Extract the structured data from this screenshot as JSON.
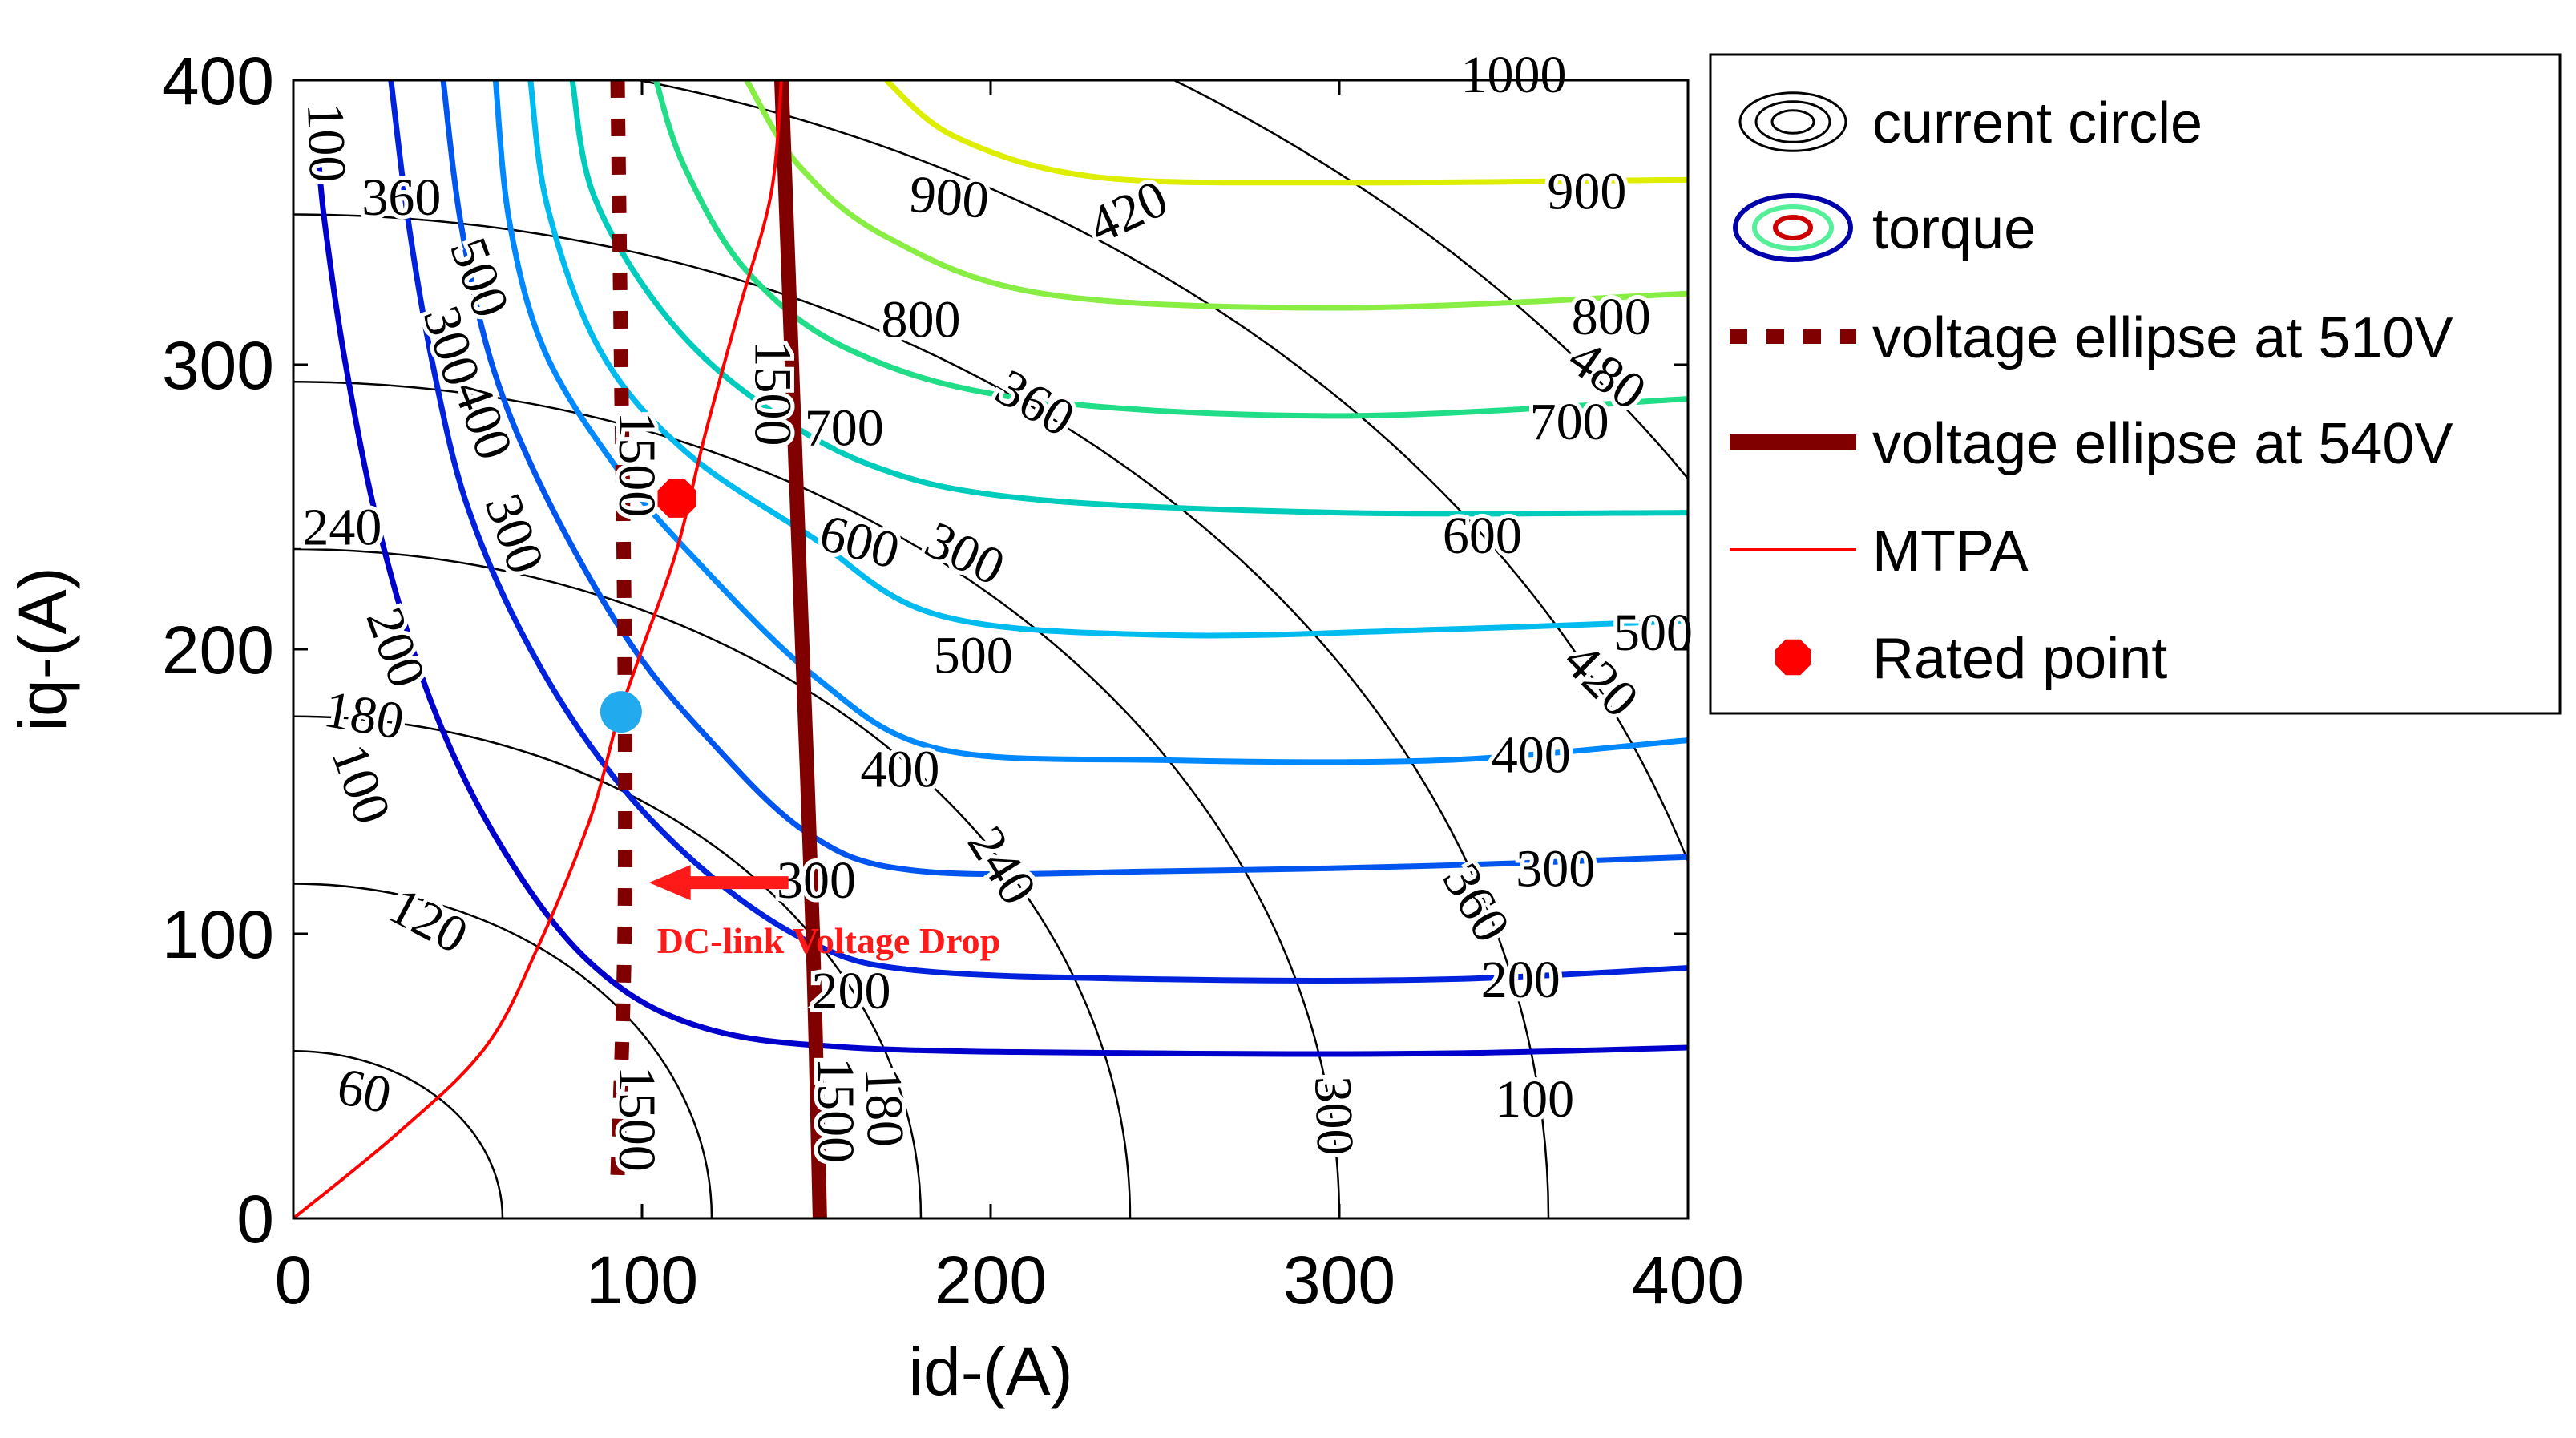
{
  "chart_data": {
    "type": "contour",
    "xlabel": "id-(A)",
    "ylabel": "iq-(A)",
    "xlim": [
      0,
      400
    ],
    "ylim": [
      0,
      400
    ],
    "xticks": [
      "0",
      "100",
      "200",
      "300",
      "400"
    ],
    "yticks": [
      "0",
      "100",
      "200",
      "300",
      "400"
    ],
    "legend_position": "outside-right",
    "legend": [
      {
        "key": "current_circle",
        "label": "current circle",
        "style": "black-concentric-ellipses",
        "color": "#000000"
      },
      {
        "key": "torque",
        "label": "torque",
        "style": "colored-concentric-ellipses",
        "color": "#0000aa"
      },
      {
        "key": "v510",
        "label": "voltage ellipse at 510V",
        "style": "dashed",
        "color": "#800000"
      },
      {
        "key": "v540",
        "label": "voltage ellipse at 540V",
        "style": "solid-thick",
        "color": "#800000"
      },
      {
        "key": "mtpa",
        "label": "MTPA",
        "style": "line",
        "color": "#ff0000"
      },
      {
        "key": "rated",
        "label": "Rated point",
        "style": "marker",
        "color": "#ff0000"
      }
    ],
    "current_circles": {
      "radii": [
        60,
        120,
        180,
        240,
        300,
        360,
        420,
        480,
        1000
      ],
      "labels": [
        {
          "text": "60",
          "x": 20,
          "y": 43,
          "angle": 12
        },
        {
          "text": "120",
          "x": 38,
          "y": 103,
          "angle": 28
        },
        {
          "text": "180",
          "x": 20,
          "y": 175,
          "angle": 10
        },
        {
          "text": "240",
          "x": 14,
          "y": 241,
          "angle": 0
        },
        {
          "text": "300",
          "x": 62,
          "y": 240,
          "angle": 70
        },
        {
          "text": "360",
          "x": 31,
          "y": 357,
          "angle": 0
        },
        {
          "text": "420",
          "x": 240,
          "y": 352,
          "angle": -25
        },
        {
          "text": "360",
          "x": 212,
          "y": 285,
          "angle": 30
        },
        {
          "text": "300",
          "x": 192,
          "y": 232,
          "angle": 25
        },
        {
          "text": "240",
          "x": 202,
          "y": 123,
          "angle": 58
        },
        {
          "text": "180",
          "x": 168,
          "y": 39,
          "angle": 88
        },
        {
          "text": "300",
          "x": 297,
          "y": 36,
          "angle": 88
        },
        {
          "text": "360",
          "x": 338,
          "y": 110,
          "angle": 60
        },
        {
          "text": "420",
          "x": 374,
          "y": 188,
          "angle": 45
        },
        {
          "text": "480",
          "x": 376,
          "y": 295,
          "angle": 35
        },
        {
          "text": "1000",
          "x": 350,
          "y": 400,
          "angle": 0
        }
      ]
    },
    "torque_contours": [
      {
        "value": 100,
        "color": "#0000cc",
        "points": [
          [
            7,
            376
          ],
          [
            9,
            350
          ],
          [
            15,
            300
          ],
          [
            25,
            240
          ],
          [
            40,
            180
          ],
          [
            60,
            130
          ],
          [
            85,
            90
          ],
          [
            115,
            68
          ],
          [
            160,
            60
          ],
          [
            250,
            58
          ],
          [
            330,
            58
          ],
          [
            400,
            60
          ]
        ],
        "labels": [
          {
            "text": "100",
            "x": 8,
            "y": 378,
            "angle": 88
          },
          {
            "text": "100",
            "x": 18,
            "y": 152,
            "angle": 70
          },
          {
            "text": "100",
            "x": 356,
            "y": 40,
            "angle": 0
          }
        ]
      },
      {
        "value": 200,
        "color": "#0022dd",
        "points": [
          [
            28,
            400
          ],
          [
            33,
            350
          ],
          [
            40,
            300
          ],
          [
            50,
            250
          ],
          [
            68,
            200
          ],
          [
            92,
            155
          ],
          [
            120,
            120
          ],
          [
            150,
            96
          ],
          [
            180,
            87
          ],
          [
            250,
            84
          ],
          [
            330,
            84
          ],
          [
            400,
            88
          ]
        ],
        "labels": [
          {
            "text": "200",
            "x": 28,
            "y": 200,
            "angle": 70
          },
          {
            "text": "200",
            "x": 160,
            "y": 78,
            "angle": 0
          },
          {
            "text": "200",
            "x": 352,
            "y": 82,
            "angle": 0
          }
        ]
      },
      {
        "value": 300,
        "color": "#0055ee",
        "points": [
          [
            43,
            400
          ],
          [
            48,
            350
          ],
          [
            57,
            300
          ],
          [
            72,
            255
          ],
          [
            95,
            205
          ],
          [
            118,
            170
          ],
          [
            148,
            135
          ],
          [
            180,
            122
          ],
          [
            250,
            122
          ],
          [
            330,
            124
          ],
          [
            400,
            127
          ]
        ],
        "labels": [
          {
            "text": "300",
            "x": 44,
            "y": 306,
            "angle": 72
          },
          {
            "text": "300",
            "x": 150,
            "y": 117,
            "angle": 0
          },
          {
            "text": "300",
            "x": 362,
            "y": 121,
            "angle": 0
          }
        ]
      },
      {
        "value": 400,
        "color": "#0088ff",
        "points": [
          [
            58,
            400
          ],
          [
            62,
            350
          ],
          [
            72,
            305
          ],
          [
            92,
            265
          ],
          [
            115,
            232
          ],
          [
            150,
            190
          ],
          [
            185,
            165
          ],
          [
            250,
            161
          ],
          [
            330,
            161
          ],
          [
            400,
            168
          ]
        ],
        "labels": [
          {
            "text": "400",
            "x": 53,
            "y": 280,
            "angle": 70
          },
          {
            "text": "400",
            "x": 174,
            "y": 156,
            "angle": 0
          },
          {
            "text": "400",
            "x": 355,
            "y": 161,
            "angle": 0
          }
        ]
      },
      {
        "value": 500,
        "color": "#00bbee",
        "points": [
          [
            68,
            400
          ],
          [
            73,
            355
          ],
          [
            88,
            305
          ],
          [
            112,
            270
          ],
          [
            148,
            240
          ],
          [
            185,
            212
          ],
          [
            250,
            205
          ],
          [
            330,
            207
          ],
          [
            400,
            210
          ]
        ],
        "labels": [
          {
            "text": "500",
            "x": 52,
            "y": 330,
            "angle": 70
          },
          {
            "text": "500",
            "x": 195,
            "y": 196,
            "angle": 0
          },
          {
            "text": "500",
            "x": 390,
            "y": 204,
            "angle": 0
          }
        ]
      },
      {
        "value": 600,
        "color": "#00ccbb",
        "points": [
          [
            80,
            400
          ],
          [
            86,
            360
          ],
          [
            105,
            320
          ],
          [
            130,
            290
          ],
          [
            165,
            265
          ],
          [
            210,
            253
          ],
          [
            300,
            248
          ],
          [
            400,
            248
          ]
        ],
        "labels": [
          {
            "text": "600",
            "x": 162,
            "y": 236,
            "angle": 15
          },
          {
            "text": "600",
            "x": 341,
            "y": 238,
            "angle": 0
          }
        ]
      },
      {
        "value": 700,
        "color": "#22dd88",
        "points": [
          [
            104,
            400
          ],
          [
            112,
            370
          ],
          [
            130,
            333
          ],
          [
            160,
            305
          ],
          [
            210,
            288
          ],
          [
            300,
            282
          ],
          [
            400,
            288
          ]
        ],
        "labels": [
          {
            "text": "700",
            "x": 158,
            "y": 276,
            "angle": 0
          },
          {
            "text": "700",
            "x": 366,
            "y": 278,
            "angle": 0
          }
        ]
      },
      {
        "value": 800,
        "color": "#88ee44",
        "points": [
          [
            130,
            400
          ],
          [
            145,
            370
          ],
          [
            170,
            345
          ],
          [
            215,
            325
          ],
          [
            300,
            320
          ],
          [
            400,
            325
          ]
        ],
        "labels": [
          {
            "text": "800",
            "x": 180,
            "y": 314,
            "angle": 0
          },
          {
            "text": "800",
            "x": 378,
            "y": 315,
            "angle": 0
          }
        ]
      },
      {
        "value": 900,
        "color": "#ddee00",
        "points": [
          [
            170,
            400
          ],
          [
            190,
            380
          ],
          [
            230,
            366
          ],
          [
            300,
            364
          ],
          [
            400,
            365
          ]
        ],
        "labels": [
          {
            "text": "900",
            "x": 188,
            "y": 357,
            "angle": 5
          },
          {
            "text": "900",
            "x": 371,
            "y": 359,
            "angle": 0
          }
        ]
      }
    ],
    "voltage_ellipse_510V": {
      "voltage": "510V",
      "points": [
        [
          93,
          400
        ],
        [
          94,
          300
        ],
        [
          95,
          200
        ],
        [
          95,
          100
        ],
        [
          93,
          15
        ]
      ],
      "labels": [
        {
          "text": "1500",
          "x": 97,
          "y": 265,
          "angle": 90
        },
        {
          "text": "1500",
          "x": 97,
          "y": 35,
          "angle": 90
        }
      ]
    },
    "voltage_ellipse_540V": {
      "voltage": "540V",
      "points": [
        [
          140,
          400
        ],
        [
          143,
          300
        ],
        [
          146,
          200
        ],
        [
          149,
          100
        ],
        [
          151,
          0
        ]
      ],
      "labels": [
        {
          "text": "1500",
          "x": 136,
          "y": 290,
          "angle": 90
        },
        {
          "text": "1500",
          "x": 154,
          "y": 38,
          "angle": 90
        }
      ]
    },
    "mtpa": {
      "points": [
        [
          0,
          0
        ],
        [
          30,
          30
        ],
        [
          55,
          60
        ],
        [
          70,
          95
        ],
        [
          85,
          140
        ],
        [
          93,
          175
        ],
        [
          100,
          200
        ],
        [
          110,
          235
        ],
        [
          118,
          275
        ],
        [
          128,
          320
        ],
        [
          137,
          360
        ],
        [
          140,
          400
        ]
      ]
    },
    "rated_point": {
      "x": 110,
      "y": 253
    },
    "operating_point": {
      "x": 94,
      "y": 178,
      "color": "#22aaee"
    },
    "annotation": {
      "text": "DC-link Voltage Drop",
      "arrow_from": [
        142,
        118
      ],
      "arrow_to": [
        102,
        118
      ]
    }
  }
}
